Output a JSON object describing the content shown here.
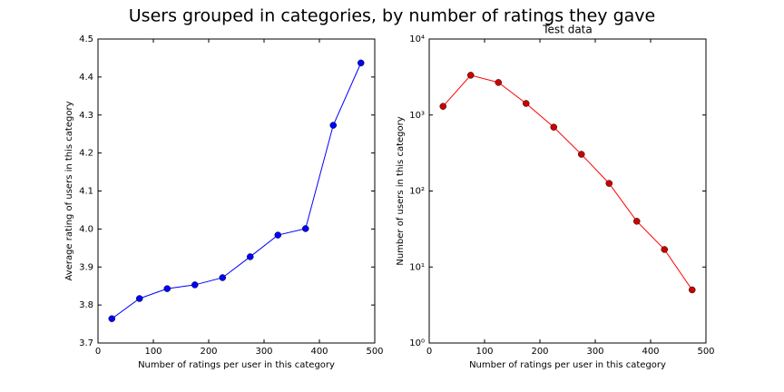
{
  "title": "Users grouped in categories, by number of ratings they gave",
  "chart_data": [
    {
      "type": "line",
      "xlabel": "Number of ratings per user in this category",
      "ylabel": "Average rating of users in this category",
      "x": [
        25,
        75,
        125,
        175,
        225,
        275,
        325,
        375,
        425,
        475
      ],
      "values": [
        3.764,
        3.817,
        3.843,
        3.853,
        3.872,
        3.927,
        3.984,
        4.001,
        4.273,
        4.437
      ],
      "color": "#0000ff",
      "marker_color": "#0000ff",
      "xlim": [
        0,
        500
      ],
      "xticks": [
        0,
        100,
        200,
        300,
        400,
        500
      ],
      "ylim": [
        3.7,
        4.5
      ],
      "yticks": [
        3.7,
        3.8,
        3.9,
        {
          "value": 4,
          "label": "4.0"
        },
        4.1,
        4.2,
        4.3,
        4.4,
        4.5
      ],
      "log_y": false
    },
    {
      "type": "line",
      "title": "Test data",
      "xlabel": "Number of ratings per user in this category",
      "ylabel": "Number of users in this category",
      "x": [
        25,
        75,
        125,
        175,
        225,
        275,
        325,
        375,
        425,
        475
      ],
      "values": [
        1300,
        3340,
        2680,
        1420,
        692,
        304,
        126,
        40,
        17,
        5
      ],
      "color": "#ff0000",
      "marker_color": "#cc0000",
      "xlim": [
        0,
        500
      ],
      "xticks": [
        0,
        100,
        200,
        300,
        400,
        500
      ],
      "ylim": [
        1,
        10000
      ],
      "yticks": [
        {
          "value": 1,
          "label": "10⁰"
        },
        {
          "value": 10,
          "label": "10¹"
        },
        {
          "value": 100,
          "label": "10²"
        },
        {
          "value": 1000,
          "label": "10³"
        },
        {
          "value": 10000,
          "label": "10⁴"
        }
      ],
      "log_y": true
    }
  ]
}
